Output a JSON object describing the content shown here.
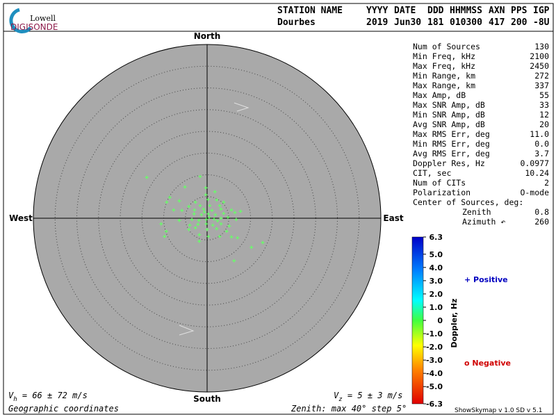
{
  "logo": {
    "top": "Lowell",
    "bottom": "DIGISONDE"
  },
  "header": {
    "labels": [
      "STATION NAME",
      "YYYY",
      "DATE",
      "DDD",
      "HHMMSS",
      "AXN",
      "PPS",
      "IGP"
    ],
    "values": [
      "Dourbes",
      "2019",
      "Jun30",
      "181",
      "010300",
      "417",
      "200",
      "-8U"
    ]
  },
  "stats": [
    [
      "Num of Sources",
      "130"
    ],
    [
      "Min Freq, kHz",
      "2100"
    ],
    [
      "Max Freq, kHz",
      "2450"
    ],
    [
      "Min Range, km",
      "272"
    ],
    [
      "Max Range, km",
      "337"
    ],
    [
      "Max Amp, dB",
      "55"
    ],
    [
      "Max SNR Amp, dB",
      "33"
    ],
    [
      "Min SNR Amp, dB",
      "12"
    ],
    [
      "Avg SNR Amp, dB",
      "20"
    ],
    [
      "Max RMS Err, deg",
      "11.0"
    ],
    [
      "Min RMS Err, deg",
      "0.0"
    ],
    [
      "Avg RMS Err, deg",
      "3.7"
    ],
    [
      "Doppler Res, Hz",
      "0.0977"
    ],
    [
      "CIT, sec",
      "10.24"
    ],
    [
      "Num of CITs",
      "2"
    ],
    [
      "Polarization",
      "O-mode"
    ],
    [
      "Center of Sources, deg:"
    ],
    [
      "Zenith",
      "0.8"
    ],
    [
      "Azimuth ↶",
      "260"
    ]
  ],
  "footer": {
    "vh": [
      "V",
      "h",
      " = 66 ± 72 m/s"
    ],
    "vz": [
      "V",
      "z",
      " = 5 ± 3 m/s"
    ],
    "coords": "Geographic coordinates",
    "zenith": "Zenith: max 40°  step 5°",
    "version": "ShowSkymap v 1.0  SD v 5.1"
  },
  "chart_data": {
    "type": "scatter",
    "compass": {
      "north": "North",
      "south": "South",
      "east": "East",
      "west": "West"
    },
    "rlim": [
      0,
      40
    ],
    "rticks": [
      5,
      10,
      15,
      20,
      25,
      30,
      35,
      40
    ],
    "color": "#66ff66",
    "x": [
      -13.9,
      -1.6,
      -5.1,
      -0.3,
      -8.6,
      1.8,
      -0.3,
      -6.4,
      -2.7,
      0.2,
      2.2,
      3.8,
      -4.2,
      -1.6,
      0.6,
      2.9,
      -7.7,
      -5.8,
      -2.9,
      -0.8,
      1.1,
      3.2,
      5.6,
      -3.0,
      -1.3,
      0.3,
      1.9,
      3.8,
      6.4,
      7.7,
      -10.6,
      -3.5,
      -1.9,
      -0.2,
      1.6,
      3.2,
      4.8,
      6.7,
      -4.0,
      -2.1,
      -0.2,
      1.3,
      3.2,
      5.1,
      -9.4,
      -2.7,
      0,
      2.2,
      4.5,
      -1.8,
      0.3,
      2.9,
      5.6,
      7.0,
      -9.8,
      -1.8,
      12.8,
      10.2,
      6.2,
      -6.4,
      -9.3,
      -4.2,
      0.5,
      -0.6,
      2.4
    ],
    "y": [
      9.4,
      9.6,
      7.2,
      7.0,
      4.8,
      6.1,
      5.4,
      4.0,
      3.7,
      4.3,
      4.2,
      3.7,
      2.7,
      2.9,
      2.9,
      2.9,
      1.9,
      1.8,
      1.9,
      2.1,
      1.8,
      2.1,
      1.9,
      1.0,
      0.8,
      1.0,
      0.8,
      1.1,
      1.3,
      1.6,
      -1.3,
      -0.3,
      -0.5,
      -0.3,
      -0.2,
      0,
      0.2,
      -0.3,
      -1.6,
      -1.4,
      -1.3,
      -1.6,
      -1.3,
      -1.8,
      -3.0,
      -2.2,
      -2.6,
      -2.4,
      -3.0,
      -3.8,
      -4.2,
      -4.2,
      -4.3,
      -4.5,
      -4.2,
      -5.3,
      -5.6,
      -6.7,
      -9.8,
      -0.5,
      3.7,
      -2.6,
      0.2,
      1.4,
      -0.6
    ],
    "colorbar": {
      "label": "Doppler, Hz",
      "lim": [
        -6.3,
        6.3
      ],
      "ticks": [
        6.3,
        {
          "value": 5,
          "label": "5.0"
        },
        {
          "value": 4,
          "label": "4.0"
        },
        {
          "value": 3,
          "label": "3.0"
        },
        {
          "value": 2,
          "label": "2.0"
        },
        {
          "value": 1,
          "label": "1.0"
        },
        0,
        {
          "value": -1,
          "label": "-1.0"
        },
        {
          "value": -2,
          "label": "-2.0"
        },
        {
          "value": -3,
          "label": "-3.0"
        },
        {
          "value": -4,
          "label": "-4.0"
        },
        {
          "value": -5,
          "label": "-5.0"
        },
        -6.3
      ]
    },
    "legend": {
      "positive": "+ Positive",
      "negative": "o Negative"
    }
  }
}
